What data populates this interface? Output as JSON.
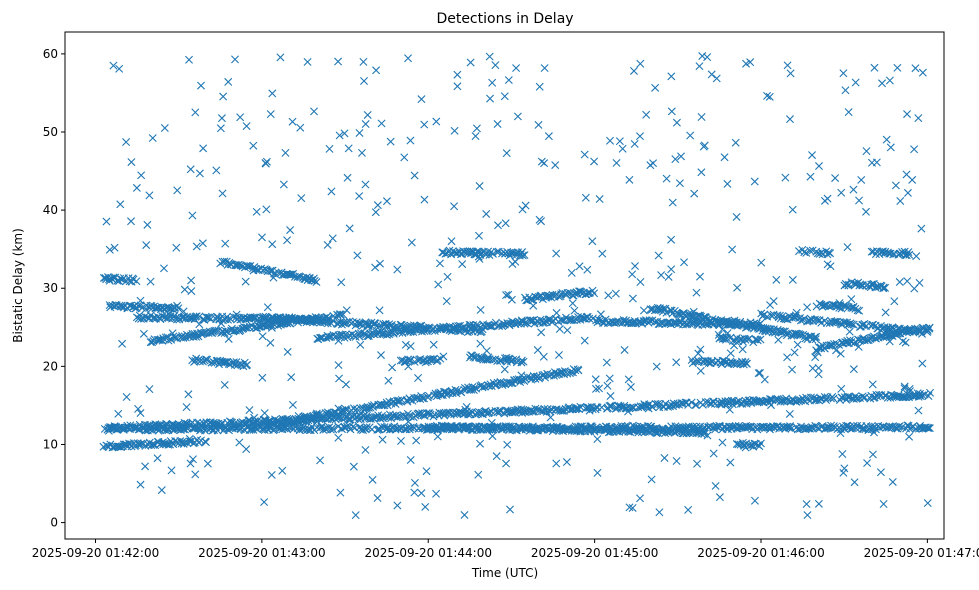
{
  "chart_data": {
    "type": "scatter",
    "title": "Detections in Delay",
    "xlabel": "Time (UTC)",
    "ylabel": "Bistatic Delay (km)",
    "marker": "x",
    "color": "#1f77b4",
    "grid": false,
    "x_tick_labels": [
      "2025-09-20 01:42:00",
      "2025-09-20 01:43:00",
      "2025-09-20 01:44:00",
      "2025-09-20 01:45:00",
      "2025-09-20 01:46:00",
      "2025-09-20 01:47:00"
    ],
    "y_ticks": [
      0,
      10,
      20,
      30,
      40,
      50,
      60
    ],
    "xlim": [
      "2025-09-20 01:41:49",
      "2025-09-20 01:47:06"
    ],
    "ylim": [
      -2.1,
      62.8
    ],
    "tracks": [
      {
        "x_start": "2025-09-20 01:42:03",
        "x_end": "2025-09-20 01:47:01",
        "y_start": 12.1,
        "y_end": 16.4
      },
      {
        "x_start": "2025-09-20 01:42:03",
        "x_end": "2025-09-20 01:47:01",
        "y_start": 12.0,
        "y_end": 12.2
      },
      {
        "x_start": "2025-09-20 01:43:00",
        "x_end": "2025-09-20 01:44:55",
        "y_start": 12.4,
        "y_end": 19.6
      },
      {
        "x_start": "2025-09-20 01:44:00",
        "x_end": "2025-09-20 01:45:40",
        "y_start": 12.2,
        "y_end": 11.6
      },
      {
        "x_start": "2025-09-20 01:42:03",
        "x_end": "2025-09-20 01:42:40",
        "y_start": 9.7,
        "y_end": 10.5
      },
      {
        "x_start": "2025-09-20 01:42:20",
        "x_end": "2025-09-20 01:43:30",
        "y_start": 23.2,
        "y_end": 26.6
      },
      {
        "x_start": "2025-09-20 01:42:15",
        "x_end": "2025-09-20 01:43:20",
        "y_start": 26.3,
        "y_end": 26.0
      },
      {
        "x_start": "2025-09-20 01:43:00",
        "x_end": "2025-09-20 01:44:20",
        "y_start": 26.2,
        "y_end": 24.5
      },
      {
        "x_start": "2025-09-20 01:43:20",
        "x_end": "2025-09-20 01:45:00",
        "y_start": 23.6,
        "y_end": 26.3
      },
      {
        "x_start": "2025-09-20 01:45:00",
        "x_end": "2025-09-20 01:46:00",
        "y_start": 25.8,
        "y_end": 25.4
      },
      {
        "x_start": "2025-09-20 01:45:20",
        "x_end": "2025-09-20 01:46:20",
        "y_start": 27.5,
        "y_end": 23.5
      },
      {
        "x_start": "2025-09-20 01:46:00",
        "x_end": "2025-09-20 01:47:01",
        "y_start": 26.6,
        "y_end": 24.3
      },
      {
        "x_start": "2025-09-20 01:46:20",
        "x_end": "2025-09-20 01:47:01",
        "y_start": 22.3,
        "y_end": 25.0
      },
      {
        "x_start": "2025-09-20 01:42:45",
        "x_end": "2025-09-20 01:43:20",
        "y_start": 33.4,
        "y_end": 31.0
      },
      {
        "x_start": "2025-09-20 01:44:35",
        "x_end": "2025-09-20 01:45:00",
        "y_start": 28.6,
        "y_end": 29.6
      },
      {
        "x_start": "2025-09-20 01:42:03",
        "x_end": "2025-09-20 01:42:15",
        "y_start": 31.2,
        "y_end": 31.0
      },
      {
        "x_start": "2025-09-20 01:44:05",
        "x_end": "2025-09-20 01:44:35",
        "y_start": 34.6,
        "y_end": 34.4
      },
      {
        "x_start": "2025-09-20 01:46:15",
        "x_end": "2025-09-20 01:46:25",
        "y_start": 34.7,
        "y_end": 34.5
      },
      {
        "x_start": "2025-09-20 01:46:40",
        "x_end": "2025-09-20 01:46:55",
        "y_start": 34.6,
        "y_end": 34.4
      },
      {
        "x_start": "2025-09-20 01:46:30",
        "x_end": "2025-09-20 01:46:45",
        "y_start": 30.6,
        "y_end": 30.2
      },
      {
        "x_start": "2025-09-20 01:45:35",
        "x_end": "2025-09-20 01:45:55",
        "y_start": 20.6,
        "y_end": 20.4
      },
      {
        "x_start": "2025-09-20 01:42:35",
        "x_end": "2025-09-20 01:42:55",
        "y_start": 20.8,
        "y_end": 20.2
      },
      {
        "x_start": "2025-09-20 01:43:50",
        "x_end": "2025-09-20 01:44:05",
        "y_start": 20.7,
        "y_end": 20.8
      },
      {
        "x_start": "2025-09-20 01:44:15",
        "x_end": "2025-09-20 01:44:35",
        "y_start": 21.2,
        "y_end": 20.6
      },
      {
        "x_start": "2025-09-20 01:45:45",
        "x_end": "2025-09-20 01:46:00",
        "y_start": 23.5,
        "y_end": 23.3
      },
      {
        "x_start": "2025-09-20 01:45:50",
        "x_end": "2025-09-20 01:46:00",
        "y_start": 10.1,
        "y_end": 9.9
      },
      {
        "x_start": "2025-09-20 01:42:05",
        "x_end": "2025-09-20 01:42:30",
        "y_start": 27.7,
        "y_end": 27.5
      },
      {
        "x_start": "2025-09-20 01:46:20",
        "x_end": "2025-09-20 01:46:35",
        "y_start": 27.9,
        "y_end": 27.4
      }
    ],
    "clutter": {
      "count": 520,
      "x_range": [
        "2025-09-20 01:42:03",
        "2025-09-20 01:47:01"
      ],
      "y_range": [
        0.5,
        59.8
      ]
    }
  }
}
